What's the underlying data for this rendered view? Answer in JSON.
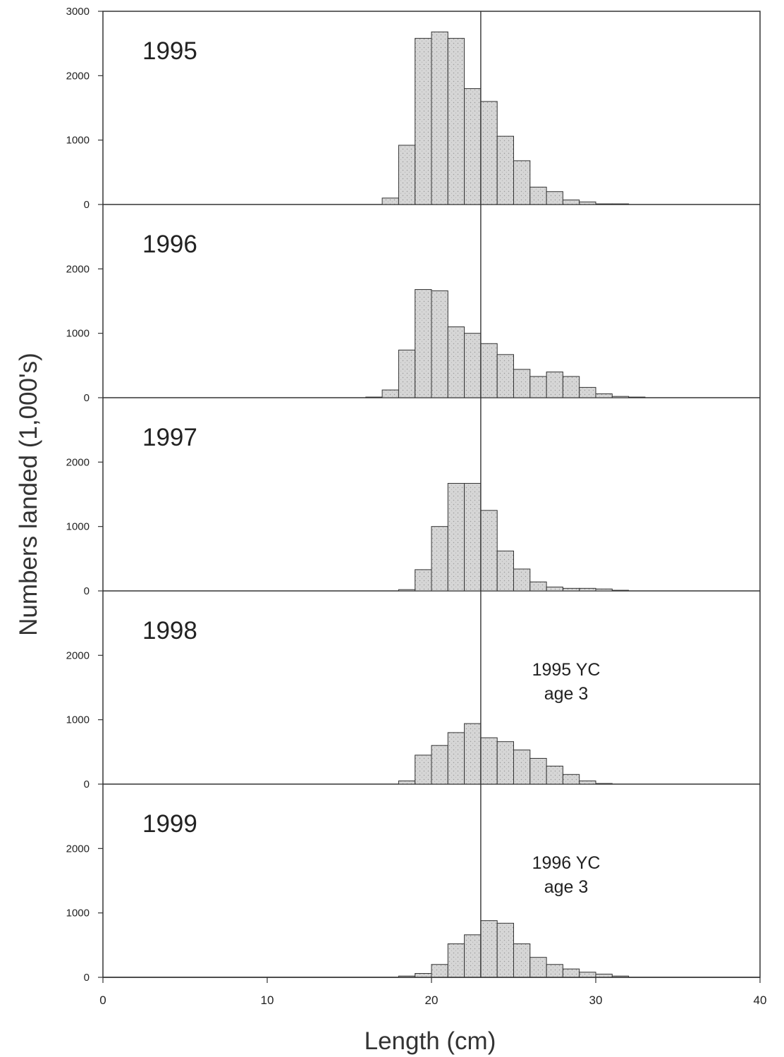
{
  "chart_data": {
    "type": "bar",
    "xlabel": "Length (cm)",
    "ylabel": "Numbers landed (1,000's)",
    "xlim": [
      0,
      40
    ],
    "x_ticks": [
      "0",
      "10",
      "20",
      "30",
      "40"
    ],
    "reference_line_x": 23,
    "bin_width": 1,
    "bin_starts": [
      16,
      17,
      18,
      19,
      20,
      21,
      22,
      23,
      24,
      25,
      26,
      27,
      28,
      29,
      30,
      31,
      32,
      33
    ],
    "bar_color": "#d6d6d6",
    "panels": [
      {
        "label": "1995",
        "ylim": [
          0,
          3000
        ],
        "y_ticks": [
          "0",
          "1000",
          "2000",
          "3000"
        ],
        "note": [],
        "values": [
          0,
          100,
          920,
          2580,
          2680,
          2580,
          1800,
          1600,
          1060,
          680,
          270,
          200,
          70,
          40,
          10,
          10,
          0,
          0
        ]
      },
      {
        "label": "1996",
        "ylim": [
          0,
          3000
        ],
        "y_ticks": [
          "0",
          "1000",
          "2000"
        ],
        "note": [],
        "values": [
          10,
          120,
          740,
          1680,
          1660,
          1100,
          1000,
          840,
          670,
          440,
          330,
          400,
          330,
          160,
          60,
          20,
          10,
          0
        ]
      },
      {
        "label": "1997",
        "ylim": [
          0,
          3000
        ],
        "y_ticks": [
          "0",
          "1000",
          "2000"
        ],
        "note": [],
        "values": [
          0,
          0,
          20,
          330,
          1000,
          1670,
          1670,
          1250,
          620,
          340,
          140,
          60,
          40,
          40,
          30,
          10,
          0,
          0
        ]
      },
      {
        "label": "1998",
        "ylim": [
          0,
          3000
        ],
        "y_ticks": [
          "0",
          "1000",
          "2000"
        ],
        "note": [
          "1995 YC",
          "age 3"
        ],
        "values": [
          0,
          0,
          50,
          450,
          600,
          800,
          940,
          720,
          660,
          530,
          400,
          280,
          150,
          50,
          10,
          0,
          0,
          0
        ]
      },
      {
        "label": "1999",
        "ylim": [
          0,
          3000
        ],
        "y_ticks": [
          "0",
          "1000",
          "2000"
        ],
        "note": [
          "1996 YC",
          "age 3"
        ],
        "values": [
          0,
          0,
          20,
          60,
          200,
          520,
          660,
          880,
          840,
          520,
          310,
          200,
          130,
          80,
          50,
          20,
          0,
          0
        ]
      }
    ]
  }
}
